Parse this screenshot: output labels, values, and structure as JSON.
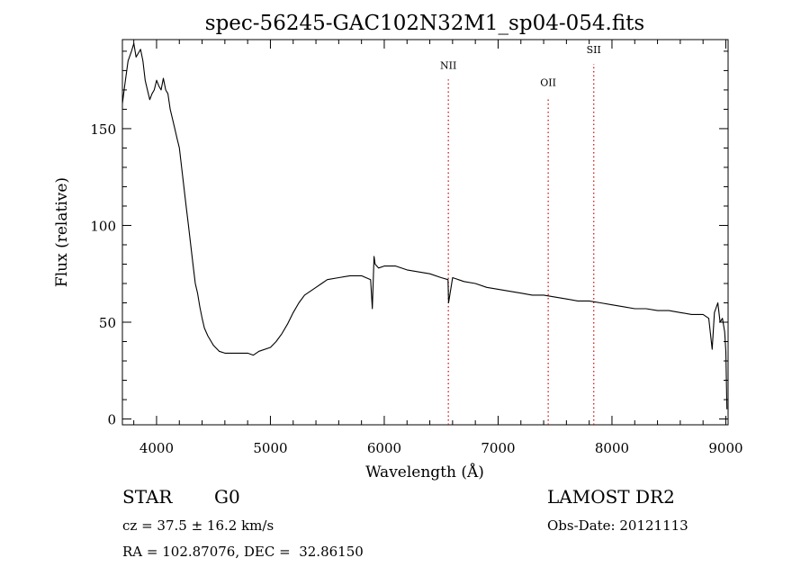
{
  "chart_data": {
    "type": "line",
    "title": "spec-56245-GAC102N32M1_sp04-054.fits",
    "xlabel": "Wavelength (Å)",
    "ylabel": "Flux (relative)",
    "xlim": [
      3700,
      9020
    ],
    "ylim": [
      -3,
      196
    ],
    "xticks": [
      4000,
      5000,
      6000,
      7000,
      8000,
      9000
    ],
    "yticks": [
      0,
      50,
      100,
      150
    ],
    "x_tick_labels": [
      "4000",
      "5000",
      "6000",
      "7000",
      "8000",
      "9000"
    ],
    "y_tick_labels": [
      "0",
      "50",
      "100",
      "150"
    ],
    "grid": false,
    "series": [
      {
        "x": [
          3700,
          3720,
          3750,
          3780,
          3800,
          3820,
          3840,
          3860,
          3880,
          3900,
          3920,
          3940,
          3960,
          3980,
          4000,
          4020,
          4040,
          4060,
          4080,
          4100,
          4120,
          4140,
          4160,
          4180,
          4200,
          4220,
          4240,
          4260,
          4280,
          4300,
          4320,
          4340,
          4360,
          4380,
          4400,
          4420,
          4450,
          4500,
          4550,
          4600,
          4700,
          4800,
          4850,
          4900,
          5000,
          5050,
          5100,
          5150,
          5200,
          5250,
          5300,
          5400,
          5450,
          5500,
          5600,
          5700,
          5800,
          5880,
          5895,
          5910,
          5920,
          5950,
          6000,
          6100,
          6200,
          6300,
          6400,
          6500,
          6560,
          6565,
          6600,
          6700,
          6800,
          6900,
          7000,
          7100,
          7200,
          7300,
          7400,
          7500,
          7600,
          7700,
          7800,
          7900,
          8000,
          8100,
          8200,
          8300,
          8400,
          8500,
          8600,
          8700,
          8800,
          8850,
          8880,
          8900,
          8930,
          8950,
          8970,
          8990,
          9000,
          9010
        ],
        "y": [
          163,
          172,
          185,
          190,
          194,
          187,
          189,
          191,
          185,
          175,
          170,
          165,
          168,
          170,
          175,
          172,
          170,
          176,
          170,
          168,
          160,
          155,
          150,
          145,
          140,
          130,
          120,
          110,
          100,
          90,
          80,
          70,
          65,
          58,
          52,
          47,
          43,
          38,
          35,
          34,
          34,
          34,
          33,
          35,
          37,
          40,
          44,
          49,
          55,
          60,
          64,
          68,
          70,
          72,
          73,
          74,
          74,
          72,
          57,
          84,
          80,
          78,
          79,
          79,
          77,
          76,
          75,
          73,
          72,
          60,
          73,
          71,
          70,
          68,
          67,
          66,
          65,
          64,
          64,
          63,
          62,
          61,
          61,
          60,
          59,
          58,
          57,
          57,
          56,
          56,
          55,
          54,
          54,
          52,
          36,
          55,
          60,
          50,
          52,
          45,
          35,
          5
        ]
      }
    ],
    "annotations": [
      {
        "text": "NII",
        "x": 6563,
        "label_y": 181
      },
      {
        "text": "OII",
        "x": 7440,
        "label_y": 172
      },
      {
        "text": "SII",
        "x": 7840,
        "label_y": 189
      }
    ]
  },
  "info": {
    "object_type": "STAR",
    "subclass": "G0",
    "survey": "LAMOST DR2",
    "redshift": "cz = 37.5 ± 16.2 km/s",
    "obs_date": "Obs-Date: 20121113",
    "coords": "RA = 102.87076, DEC =  32.86150"
  }
}
